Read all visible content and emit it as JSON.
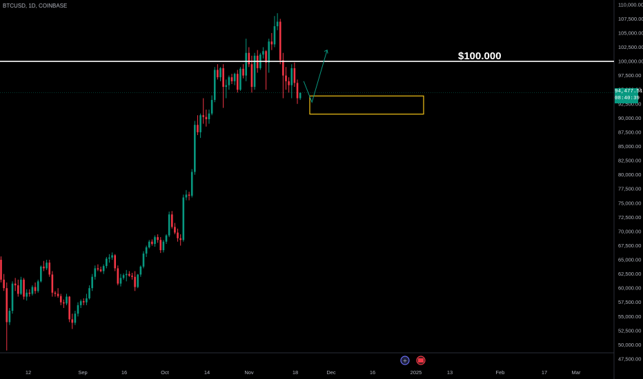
{
  "header": {
    "symbol": "BTCUSD, 1D, COINBASE"
  },
  "price_tag": {
    "price": "94,477.51",
    "timer": "08:40:39"
  },
  "annotation": {
    "text": "$100.000"
  },
  "colors": {
    "up": "#089981",
    "down": "#f23645",
    "line": "#ffffff",
    "box": "#f5c518",
    "arrow": "#089981",
    "background": "#000000"
  },
  "chart_data": {
    "type": "candlestick",
    "title": "BTCUSD, 1D, COINBASE",
    "y_ticks": [
      "47,500.00",
      "50,000.00",
      "52,500.00",
      "55,000.00",
      "57,500.00",
      "60,000.00",
      "62,500.00",
      "65,000.00",
      "67,500.00",
      "70,000.00",
      "72,500.00",
      "75,000.00",
      "77,500.00",
      "80,000.00",
      "82,500.00",
      "85,000.00",
      "87,500.00",
      "90,000.00",
      "92,500.00",
      "95,000.00",
      "97,500.00",
      "100,000.00",
      "102,500.00",
      "105,000.00",
      "107,500.00",
      "110,000.00"
    ],
    "ylim": [
      47000,
      110500
    ],
    "x_ticks": [
      "12",
      "Sep",
      "16",
      "Oct",
      "14",
      "Nov",
      "18",
      "Dec",
      "16",
      "2025",
      "13",
      "Feb",
      "17",
      "Mar"
    ],
    "horizontal_line": 100000,
    "box": {
      "y_low": 90700,
      "y_high": 93900
    },
    "projection": [
      96500,
      100000,
      92800,
      102000
    ],
    "candles": [
      [
        65000,
        65600,
        61000,
        61500
      ],
      [
        61500,
        62500,
        59500,
        60000
      ],
      [
        60000,
        61000,
        49000,
        54000
      ],
      [
        54000,
        56500,
        53500,
        56000
      ],
      [
        56000,
        61200,
        55500,
        60800
      ],
      [
        60800,
        61800,
        59500,
        60500
      ],
      [
        60500,
        61500,
        58500,
        59000
      ],
      [
        59000,
        62000,
        58800,
        61500
      ],
      [
        61500,
        61800,
        58000,
        58500
      ],
      [
        58500,
        59800,
        57800,
        59200
      ],
      [
        59200,
        59800,
        58500,
        59000
      ],
      [
        59000,
        60500,
        58700,
        60200
      ],
      [
        60200,
        61000,
        59000,
        59500
      ],
      [
        59500,
        61500,
        59200,
        61200
      ],
      [
        61200,
        64000,
        61000,
        63800
      ],
      [
        63800,
        64800,
        63000,
        63500
      ],
      [
        63500,
        65000,
        63200,
        64500
      ],
      [
        64500,
        65000,
        62000,
        62400
      ],
      [
        62400,
        63000,
        58500,
        59200
      ],
      [
        59200,
        59500,
        58500,
        59000
      ],
      [
        59000,
        60000,
        58300,
        58600
      ],
      [
        58600,
        59000,
        57000,
        57500
      ],
      [
        57500,
        58000,
        56500,
        57300
      ],
      [
        57300,
        59000,
        57000,
        58500
      ],
      [
        58500,
        58600,
        54000,
        54500
      ],
      [
        54500,
        55500,
        52800,
        53900
      ],
      [
        53900,
        56000,
        53500,
        55500
      ],
      [
        55500,
        57500,
        55000,
        57000
      ],
      [
        57000,
        58000,
        56500,
        57700
      ],
      [
        57700,
        58200,
        57000,
        57500
      ],
      [
        57500,
        59000,
        57000,
        58200
      ],
      [
        58200,
        60500,
        58000,
        60000
      ],
      [
        60000,
        62500,
        59500,
        62000
      ],
      [
        62000,
        64000,
        61500,
        63500
      ],
      [
        63500,
        64200,
        63000,
        63300
      ],
      [
        63300,
        63800,
        62800,
        63000
      ],
      [
        63000,
        64200,
        62500,
        63900
      ],
      [
        63900,
        65500,
        63500,
        65200
      ],
      [
        65200,
        66000,
        64500,
        65400
      ],
      [
        65400,
        66300,
        65000,
        65800
      ],
      [
        65800,
        66000,
        63000,
        63500
      ],
      [
        63500,
        64000,
        60500,
        60800
      ],
      [
        60800,
        62500,
        60300,
        61800
      ],
      [
        61800,
        62600,
        61500,
        62300
      ],
      [
        62300,
        63200,
        61200,
        62500
      ],
      [
        62500,
        63000,
        62000,
        62200
      ],
      [
        62200,
        62700,
        61500,
        62000
      ],
      [
        62000,
        63000,
        59500,
        60200
      ],
      [
        60200,
        62500,
        60000,
        62400
      ],
      [
        62400,
        64000,
        62000,
        63800
      ],
      [
        63800,
        66500,
        63500,
        66100
      ],
      [
        66100,
        67500,
        65500,
        67200
      ],
      [
        67200,
        68500,
        67000,
        68200
      ],
      [
        68200,
        68600,
        67500,
        67800
      ],
      [
        67800,
        69300,
        67300,
        69000
      ],
      [
        69000,
        69500,
        68000,
        68500
      ],
      [
        68500,
        69000,
        66200,
        66700
      ],
      [
        66700,
        68500,
        66300,
        68200
      ],
      [
        68200,
        69500,
        67800,
        69300
      ],
      [
        69300,
        73500,
        69000,
        73000
      ],
      [
        73000,
        73600,
        70500,
        70800
      ],
      [
        70800,
        71500,
        69500,
        69800
      ],
      [
        69800,
        70500,
        68200,
        68800
      ],
      [
        68800,
        69500,
        67500,
        68500
      ],
      [
        68500,
        76500,
        68200,
        76000
      ],
      [
        76000,
        77300,
        75500,
        76500
      ],
      [
        76500,
        77000,
        75500,
        76300
      ],
      [
        76300,
        81000,
        76000,
        80500
      ],
      [
        80500,
        89500,
        80000,
        88800
      ],
      [
        88800,
        90500,
        87000,
        87500
      ],
      [
        87500,
        90800,
        86500,
        90500
      ],
      [
        90500,
        93500,
        89000,
        90200
      ],
      [
        90200,
        91500,
        88500,
        89800
      ],
      [
        89800,
        91500,
        89000,
        90800
      ],
      [
        90800,
        94000,
        90500,
        93200
      ],
      [
        93200,
        99000,
        92800,
        98500
      ],
      [
        98500,
        99500,
        96800,
        97200
      ],
      [
        97200,
        99000,
        96500,
        98800
      ],
      [
        98800,
        99500,
        91800,
        95500
      ],
      [
        95500,
        96800,
        93500,
        95800
      ],
      [
        95800,
        97500,
        95000,
        97200
      ],
      [
        97200,
        97800,
        96000,
        96500
      ],
      [
        96500,
        98000,
        95800,
        97800
      ],
      [
        97800,
        98500,
        94500,
        95000
      ],
      [
        95000,
        99000,
        94800,
        98700
      ],
      [
        98700,
        99500,
        97000,
        97500
      ],
      [
        97500,
        104000,
        96500,
        101500
      ],
      [
        101500,
        102500,
        99000,
        99500
      ],
      [
        99500,
        101000,
        94500,
        95500
      ],
      [
        95500,
        101500,
        95000,
        101000
      ],
      [
        101000,
        102000,
        98000,
        98800
      ],
      [
        98800,
        101500,
        98500,
        101200
      ],
      [
        101200,
        102500,
        100500,
        101800
      ],
      [
        101800,
        102000,
        95000,
        99800
      ],
      [
        99800,
        104000,
        98000,
        103500
      ],
      [
        103500,
        105000,
        102000,
        103000
      ],
      [
        103000,
        108000,
        102500,
        106200
      ],
      [
        106200,
        108500,
        105500,
        107000
      ],
      [
        107000,
        107500,
        99500,
        100200
      ],
      [
        100200,
        101500,
        93500,
        97500
      ],
      [
        97500,
        99000,
        95000,
        96500
      ],
      [
        96500,
        97200,
        94500,
        95800
      ],
      [
        95800,
        99500,
        93500,
        98800
      ],
      [
        98800,
        99800,
        95500,
        96200
      ],
      [
        96200,
        96800,
        92500,
        93500
      ],
      [
        93500,
        94500,
        93200,
        94477.51
      ]
    ]
  }
}
